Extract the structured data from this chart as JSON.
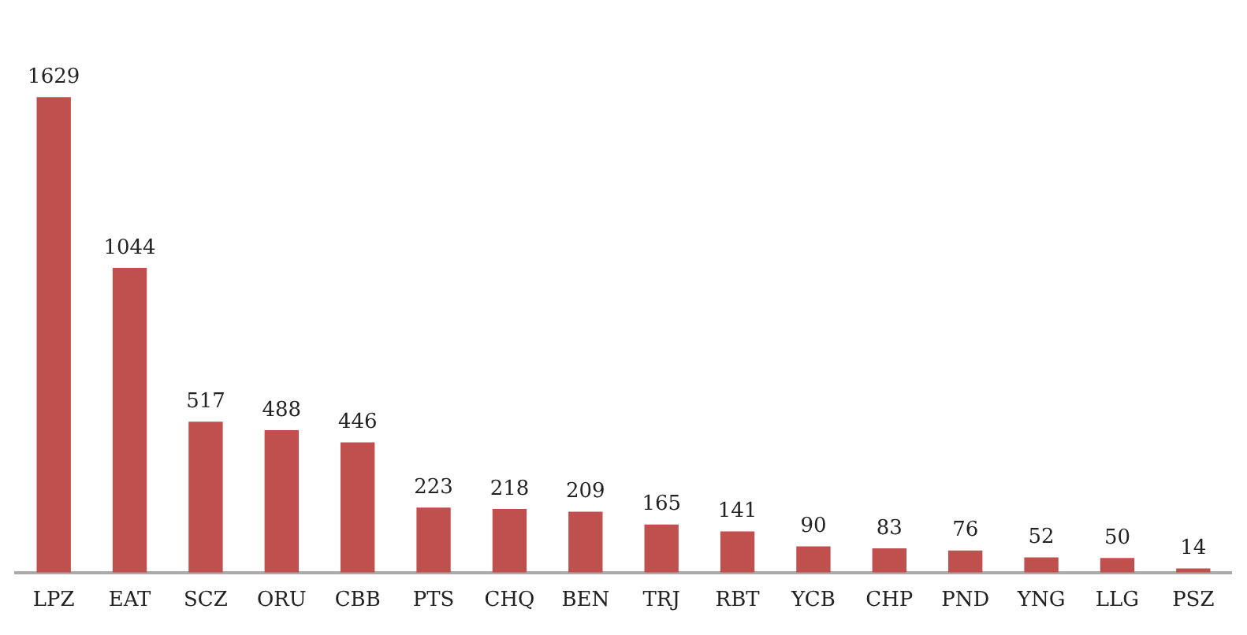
{
  "chart_data": {
    "type": "bar",
    "categories": [
      "LPZ",
      "EAT",
      "SCZ",
      "ORU",
      "CBB",
      "PTS",
      "CHQ",
      "BEN",
      "TRJ",
      "RBT",
      "YCB",
      "CHP",
      "PND",
      "YNG",
      "LLG",
      "PSZ"
    ],
    "values": [
      1629,
      1044,
      517,
      488,
      446,
      223,
      218,
      209,
      165,
      141,
      90,
      83,
      76,
      52,
      50,
      14
    ],
    "color": "#c0504d",
    "data_labels": true,
    "grid": false,
    "legend": false
  }
}
